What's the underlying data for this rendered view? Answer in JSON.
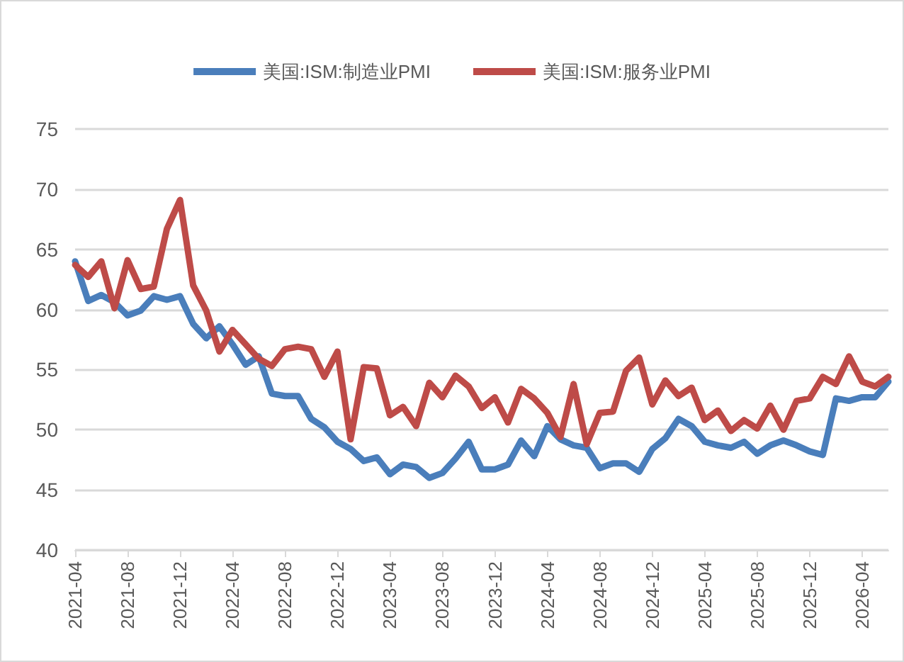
{
  "chart_data": {
    "type": "line",
    "categories": [
      "2021-04",
      null,
      null,
      null,
      "2021-08",
      null,
      null,
      null,
      "2021-12",
      null,
      null,
      null,
      "2022-04",
      null,
      null,
      null,
      "2022-08",
      null,
      null,
      null,
      "2022-12",
      null,
      null,
      null,
      "2023-04",
      null,
      null,
      null,
      "2023-08",
      null,
      null,
      null,
      "2023-12",
      null,
      null,
      null,
      "2024-04",
      null,
      null,
      null,
      "2024-08",
      null,
      null,
      null,
      "2024-12",
      null,
      null,
      null,
      "2025-04",
      null,
      null,
      null,
      "2025-08",
      null,
      null,
      null,
      "2025-12",
      null,
      null,
      null,
      "2026-04",
      null,
      null
    ],
    "series": [
      {
        "name": "美国:ISM:制造业PMI",
        "color": "#4a7ebb",
        "values": [
          64.0,
          60.7,
          61.2,
          60.6,
          59.5,
          59.9,
          61.1,
          60.8,
          61.1,
          58.8,
          57.6,
          58.6,
          57.1,
          55.4,
          56.1,
          53.0,
          52.8,
          52.8,
          50.9,
          50.2,
          49.0,
          48.4,
          47.4,
          47.7,
          46.3,
          47.1,
          46.9,
          46.0,
          46.4,
          47.6,
          49.0,
          46.7,
          46.7,
          47.1,
          49.1,
          47.8,
          50.3,
          49.2,
          48.7,
          48.5,
          46.8,
          47.2,
          47.2,
          46.5,
          48.4,
          49.3,
          50.9,
          50.3,
          49.0,
          48.7,
          48.5,
          49.0,
          48.0,
          48.7,
          49.1,
          48.7,
          48.2,
          47.9,
          52.6,
          52.4,
          52.7,
          52.7,
          54.0
        ]
      },
      {
        "name": "美国:ISM:服务业PMI",
        "color": "#be4b48",
        "values": [
          63.7,
          62.7,
          64.0,
          60.1,
          64.1,
          61.7,
          61.9,
          66.7,
          69.1,
          62.0,
          59.9,
          56.5,
          58.3,
          57.1,
          55.9,
          55.3,
          56.7,
          56.9,
          56.7,
          54.4,
          56.5,
          49.2,
          55.2,
          55.1,
          51.2,
          51.9,
          50.3,
          53.9,
          52.7,
          54.5,
          53.6,
          51.8,
          52.7,
          50.6,
          53.4,
          52.6,
          51.4,
          49.4,
          53.8,
          48.8,
          51.4,
          51.5,
          54.9,
          56.0,
          52.1,
          54.1,
          52.8,
          53.5,
          50.8,
          51.6,
          49.9,
          50.8,
          50.1,
          52.0,
          50.0,
          52.4,
          52.6,
          54.4,
          53.8,
          56.1,
          54.0,
          53.6,
          54.4
        ]
      }
    ],
    "ylim": [
      40,
      75
    ],
    "yticks": [
      40,
      45,
      50,
      55,
      60,
      65,
      70,
      75
    ],
    "grid": "y",
    "legend": "top",
    "marker": "none",
    "line_style": "solid"
  }
}
